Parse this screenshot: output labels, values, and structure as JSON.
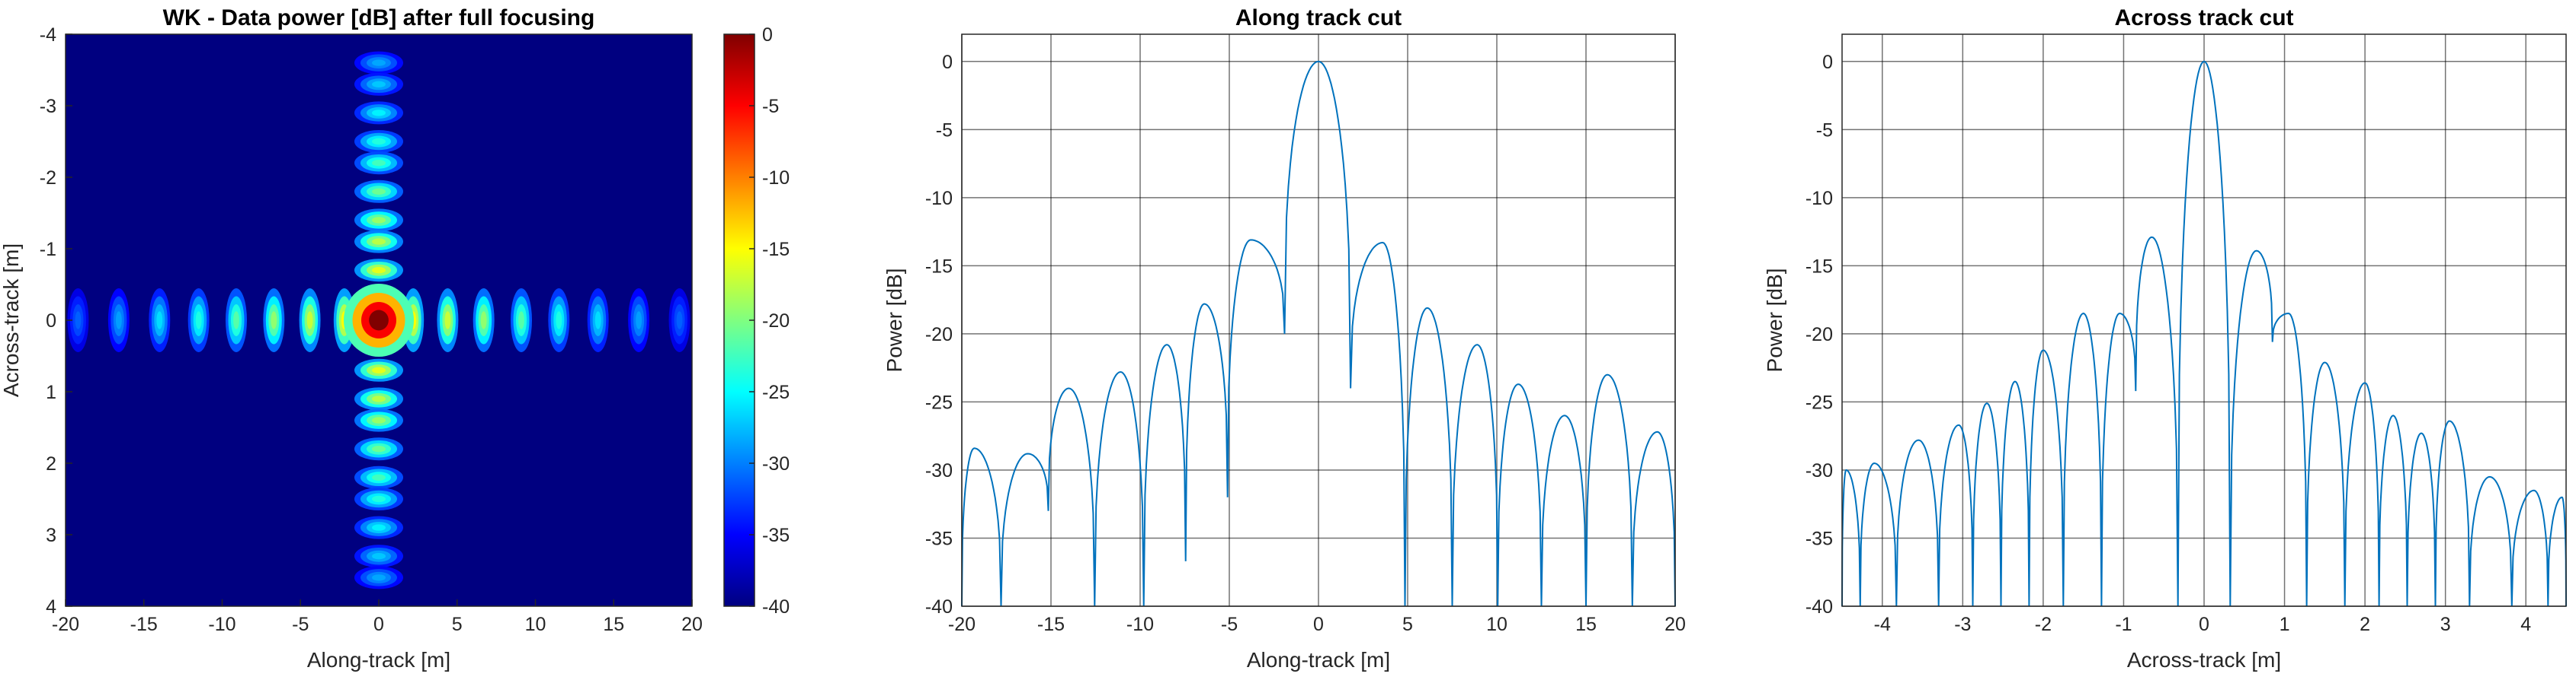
{
  "chart_data": [
    {
      "type": "heatmap",
      "title": "WK - Data power [dB] after full focusing",
      "xlabel": "Along-track [m]",
      "ylabel": "Across-track [m]",
      "xlim": [
        -20,
        20
      ],
      "ylim": [
        -4,
        4
      ],
      "y_reversed": true,
      "xticks": [
        -20,
        -15,
        -10,
        -5,
        0,
        5,
        10,
        15,
        20
      ],
      "yticks": [
        -4,
        -3,
        -2,
        -1,
        0,
        1,
        2,
        3,
        4
      ],
      "colorbar": {
        "range": [
          -40,
          0
        ],
        "ticks": [
          0,
          -5,
          -10,
          -15,
          -20,
          -25,
          -30,
          -35,
          -40
        ],
        "colormap": "jet"
      },
      "description": "sinc^2 point target response: main lobe at (0,0), sidelobes along x=0 and y=0",
      "peak": {
        "x": 0,
        "y": 0,
        "value": 0
      },
      "along_sidelobes_x": [
        -19.2,
        -16.6,
        -14.0,
        -11.5,
        -9.1,
        -6.7,
        -4.4,
        -2.2,
        2.2,
        4.4,
        6.7,
        9.1,
        11.5,
        14.0,
        16.6,
        19.2
      ],
      "across_sidelobes_y": [
        -3.6,
        -3.3,
        -2.9,
        -2.5,
        -2.2,
        -1.8,
        -1.4,
        -1.1,
        -0.7,
        0.7,
        1.1,
        1.4,
        1.8,
        2.2,
        2.5,
        2.9,
        3.3,
        3.6
      ]
    },
    {
      "type": "line",
      "title": "Along track cut",
      "xlabel": "Along-track [m]",
      "ylabel": "Power [dB]",
      "xlim": [
        -20,
        20
      ],
      "ylim": [
        -40,
        2
      ],
      "xticks": [
        -20,
        -15,
        -10,
        -5,
        0,
        5,
        10,
        15,
        20
      ],
      "yticks": [
        0,
        -5,
        -10,
        -15,
        -20,
        -25,
        -30,
        -35,
        -40
      ],
      "grid": true,
      "line_color": "#0072BD",
      "nulls": [
        -20,
        -18.8,
        -17.3,
        -15.3,
        -13.1,
        -10.4,
        -7.4,
        -5.6,
        -3.0,
        -2.4,
        2.4,
        4.7,
        7.3,
        10.0,
        12.5,
        15.0,
        17.4,
        20
      ],
      "lobes": [
        {
          "x": -19.3,
          "y": -28.4
        },
        {
          "x": -16.3,
          "y": -28.8
        },
        {
          "x": -14.0,
          "y": -24.0
        },
        {
          "x": -11.1,
          "y": -22.8
        },
        {
          "x": -8.5,
          "y": -20.8
        },
        {
          "x": -6.4,
          "y": -17.8
        },
        {
          "x": -3.8,
          "y": -13.1
        },
        {
          "x": 0.0,
          "y": 0.0
        },
        {
          "x": 3.6,
          "y": -13.3
        },
        {
          "x": 6.1,
          "y": -18.1
        },
        {
          "x": 8.9,
          "y": -20.8
        },
        {
          "x": 11.2,
          "y": -23.7
        },
        {
          "x": 13.8,
          "y": -26.0
        },
        {
          "x": 16.2,
          "y": -23.0
        },
        {
          "x": 19.0,
          "y": -27.2
        }
      ],
      "null_depths": {
        "-15.3": -33.0,
        "-10.4": -40.0,
        "-7.4": -36.7,
        "-5.6": -32.0,
        "-3.0": -20.0,
        "-2.4": -20.0,
        "2.4": -24.0
      }
    },
    {
      "type": "line",
      "title": "Across track cut",
      "xlabel": "Across-track [m]",
      "ylabel": "Power [dB]",
      "xlim": [
        -4.5,
        4.5
      ],
      "ylim": [
        -40,
        2
      ],
      "xticks": [
        -4,
        -3,
        -2,
        -1,
        0,
        1,
        2,
        3,
        4
      ],
      "yticks": [
        0,
        -5,
        -10,
        -15,
        -20,
        -25,
        -30,
        -35,
        -40
      ],
      "grid": true,
      "line_color": "#0072BD",
      "lobes": [
        {
          "x": -4.45,
          "y": -30.0
        },
        {
          "x": -4.1,
          "y": -29.5
        },
        {
          "x": -3.55,
          "y": -27.8
        },
        {
          "x": -3.05,
          "y": -26.7
        },
        {
          "x": -2.7,
          "y": -25.1
        },
        {
          "x": -2.35,
          "y": -23.5
        },
        {
          "x": -2.0,
          "y": -21.2
        },
        {
          "x": -1.5,
          "y": -18.5
        },
        {
          "x": -1.05,
          "y": -18.5
        },
        {
          "x": -0.65,
          "y": -12.9
        },
        {
          "x": 0.0,
          "y": 0.0
        },
        {
          "x": 0.65,
          "y": -13.9
        },
        {
          "x": 1.05,
          "y": -18.5
        },
        {
          "x": 1.5,
          "y": -22.1
        },
        {
          "x": 2.0,
          "y": -23.6
        },
        {
          "x": 2.35,
          "y": -26.0
        },
        {
          "x": 2.7,
          "y": -27.3
        },
        {
          "x": 3.05,
          "y": -26.4
        },
        {
          "x": 3.55,
          "y": -30.5
        },
        {
          "x": 4.1,
          "y": -31.5
        },
        {
          "x": 4.45,
          "y": -32.0
        }
      ],
      "null_depths": {
        "-0.8": -24.2,
        "0.8": -20.6
      }
    }
  ]
}
